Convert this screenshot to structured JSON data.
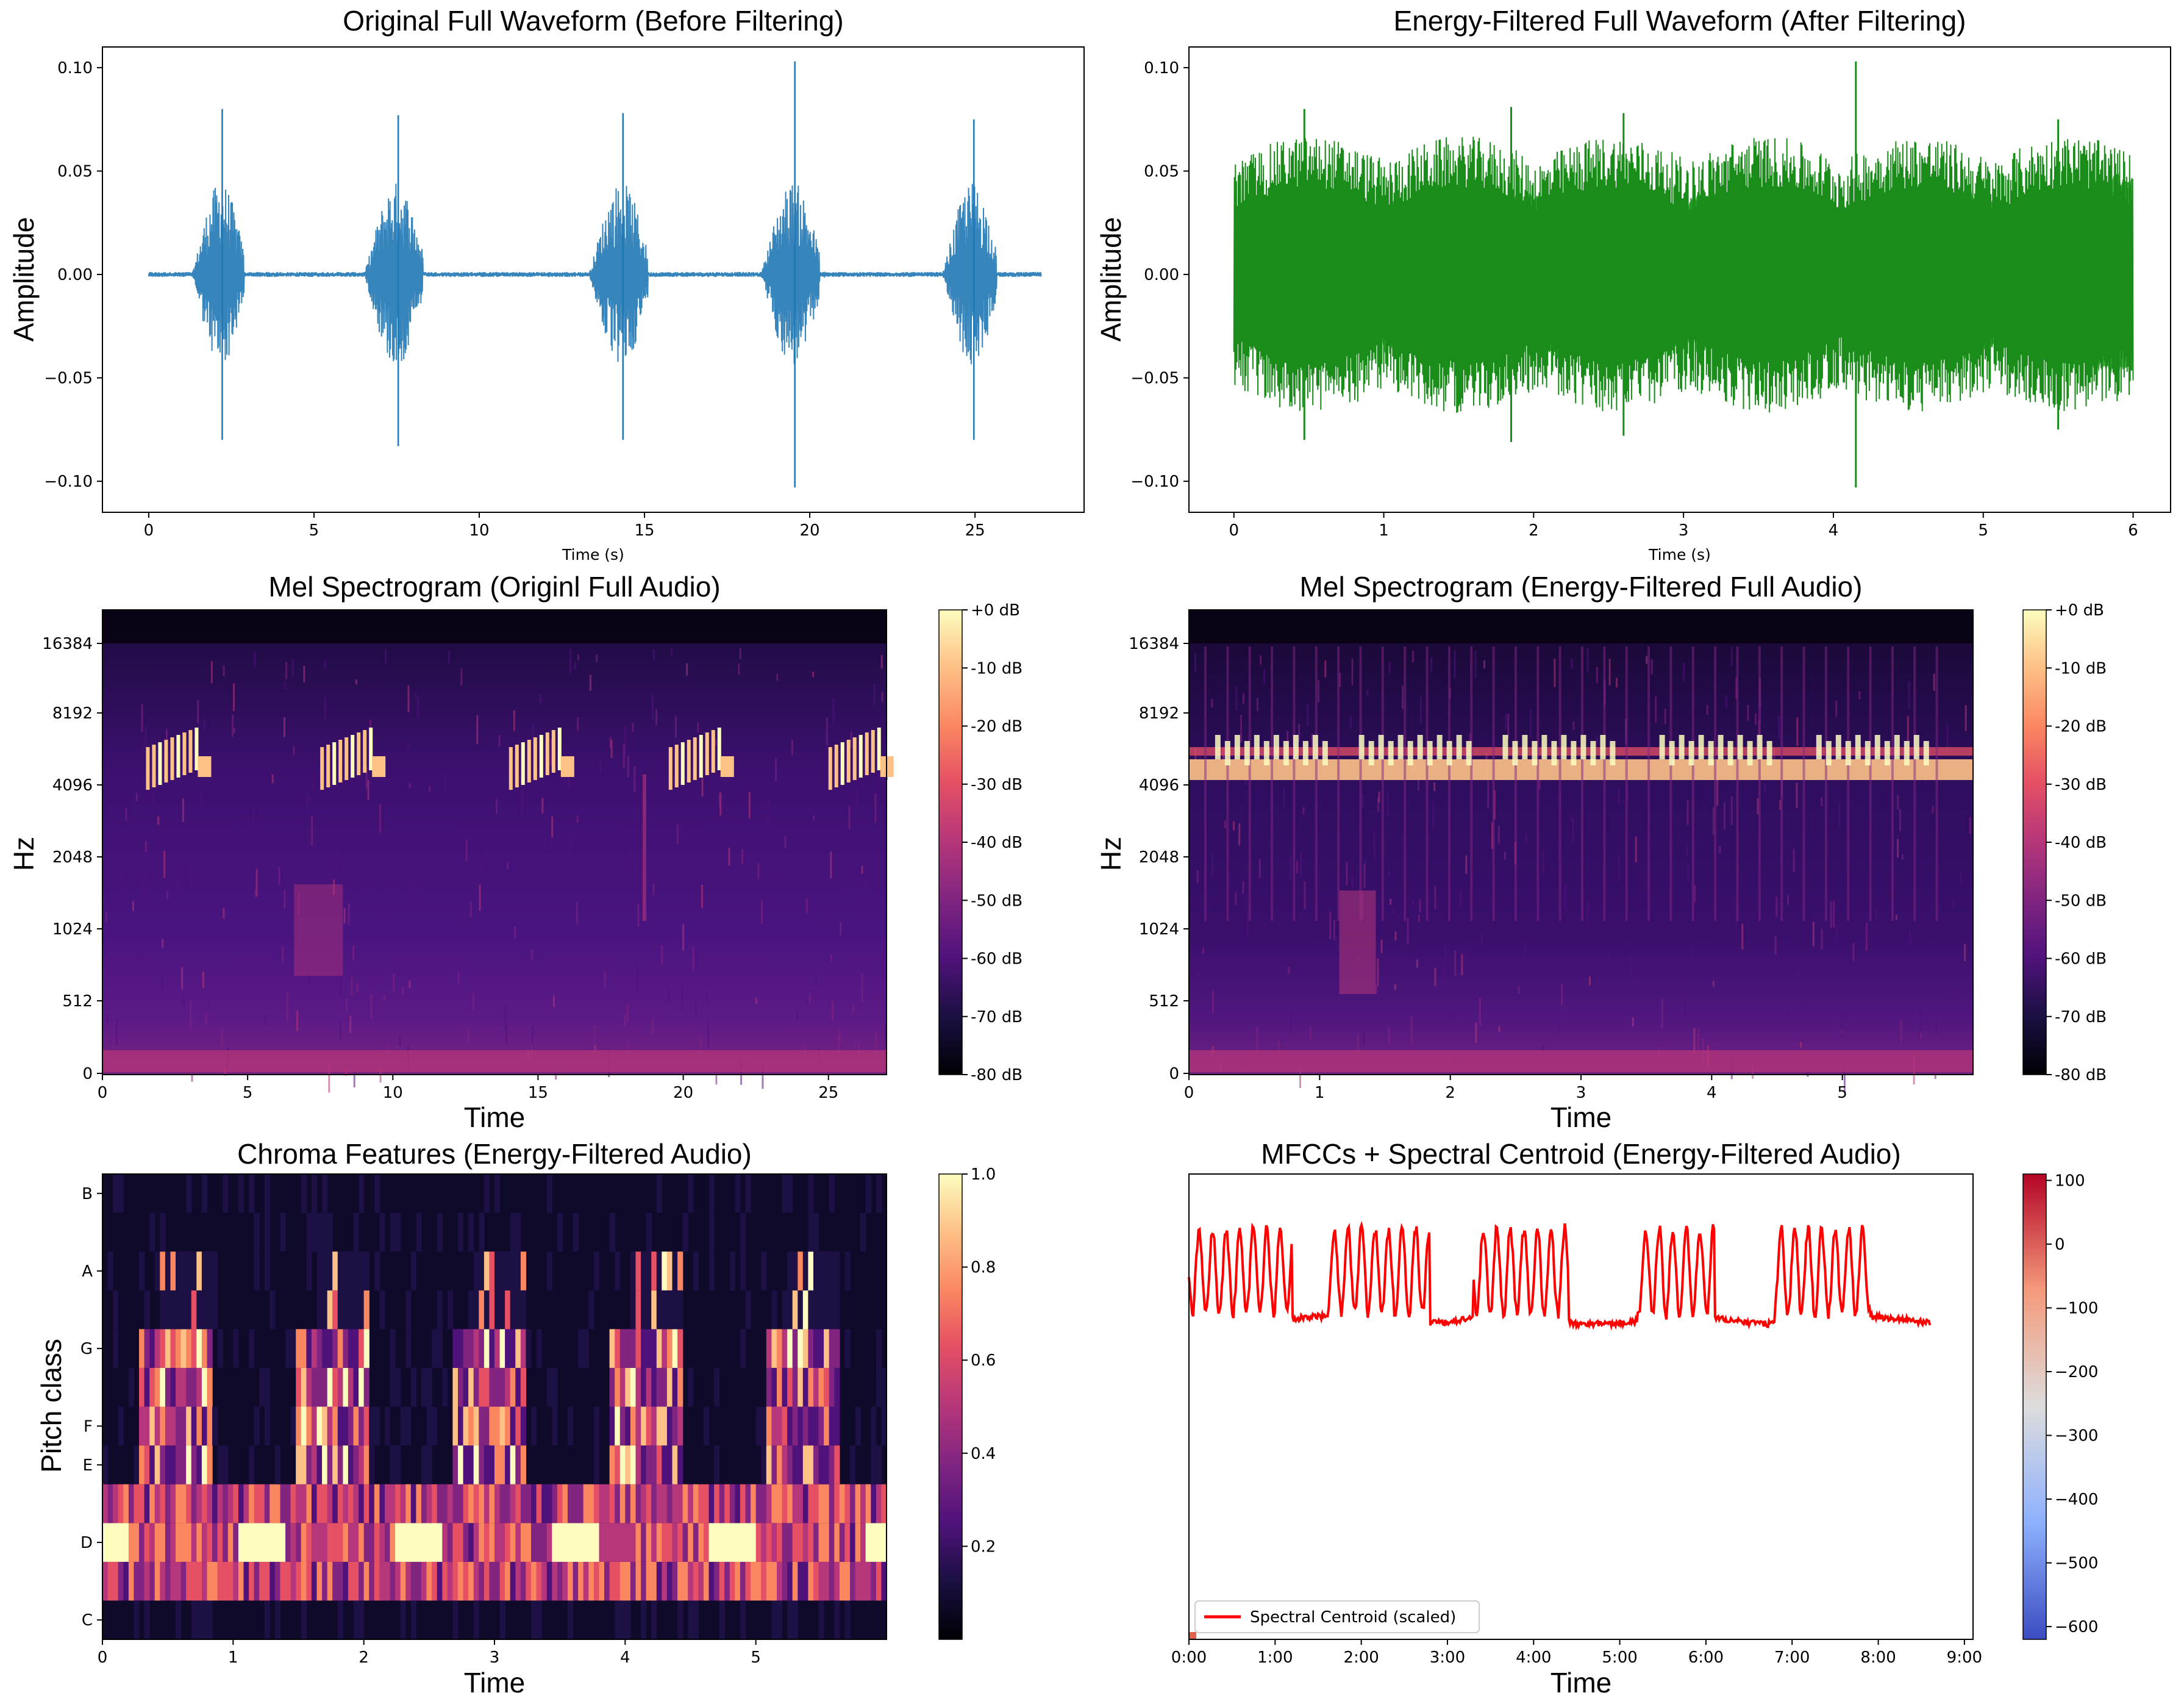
{
  "chart_data": [
    {
      "id": "orig-waveform",
      "type": "line",
      "title": "Original Full Waveform (Before Filtering)",
      "xlabel": "Time (s)",
      "ylabel": "Amplitude",
      "xlim": [
        -1.4,
        28.3
      ],
      "ylim": [
        -0.115,
        0.11
      ],
      "x_ticks": [
        0,
        5,
        10,
        15,
        20,
        25
      ],
      "x_tick_labels": [
        "0",
        "5",
        "10",
        "15",
        "20",
        "25"
      ],
      "y_ticks": [
        -0.1,
        -0.05,
        0.0,
        0.05,
        0.1
      ],
      "y_tick_labels": [
        "−0.10",
        "−0.05",
        "0.00",
        "0.05",
        "0.10"
      ],
      "color": "#1f77b4",
      "duration": 27,
      "bursts": [
        {
          "start": 1.3,
          "end": 3.5,
          "peak_pos": 0.08,
          "peak_neg": -0.08
        },
        {
          "start": 6.5,
          "end": 9.0,
          "peak_pos": 0.077,
          "peak_neg": -0.083
        },
        {
          "start": 13.3,
          "end": 15.8,
          "peak_pos": 0.078,
          "peak_neg": -0.08
        },
        {
          "start": 18.5,
          "end": 21.0,
          "peak_pos": 0.103,
          "peak_neg": -0.103
        },
        {
          "start": 24.0,
          "end": 26.3,
          "peak_pos": 0.075,
          "peak_neg": -0.08
        }
      ]
    },
    {
      "id": "filtered-waveform",
      "type": "line",
      "title": "Energy-Filtered Full Waveform (After Filtering)",
      "xlabel": "Time (s)",
      "ylabel": "Amplitude",
      "xlim": [
        -0.3,
        6.25
      ],
      "ylim": [
        -0.115,
        0.11
      ],
      "x_ticks": [
        0,
        1,
        2,
        3,
        4,
        5,
        6
      ],
      "x_tick_labels": [
        "0",
        "1",
        "2",
        "3",
        "4",
        "5",
        "6"
      ],
      "y_ticks": [
        -0.1,
        -0.05,
        0.0,
        0.05,
        0.1
      ],
      "y_tick_labels": [
        "−0.10",
        "−0.05",
        "0.00",
        "0.05",
        "0.10"
      ],
      "color": "#2ca02c",
      "duration": 6,
      "spikes": [
        {
          "t": 0.47,
          "amp": 0.08
        },
        {
          "t": 1.85,
          "amp": 0.081
        },
        {
          "t": 2.6,
          "amp": 0.078
        },
        {
          "t": 4.15,
          "amp": 0.103
        },
        {
          "t": 5.5,
          "amp": 0.075
        }
      ]
    },
    {
      "id": "mel-original",
      "type": "heatmap",
      "title": "Mel Spectrogram (Originl Full Audio)",
      "xlabel": "Time",
      "ylabel": "Hz",
      "xlim": [
        0,
        27
      ],
      "x_ticks": [
        0,
        5,
        10,
        15,
        20,
        25
      ],
      "x_tick_labels": [
        "0",
        "5",
        "10",
        "15",
        "20",
        "25"
      ],
      "y_tick_labels": [
        "0",
        "512",
        "1024",
        "2048",
        "4096",
        "8192",
        "16384"
      ],
      "colorbar_labels": [
        "+0 dB",
        "-10 dB",
        "-20 dB",
        "-30 dB",
        "-40 dB",
        "-50 dB",
        "-60 dB",
        "-70 dB",
        "-80 dB"
      ],
      "colorbar_range": [
        -80,
        0
      ],
      "call_times": [
        1.5,
        7.5,
        14.0,
        19.5,
        25.0
      ]
    },
    {
      "id": "mel-filtered",
      "type": "heatmap",
      "title": "Mel Spectrogram (Energy-Filtered Full Audio)",
      "xlabel": "Time",
      "ylabel": "Hz",
      "xlim": [
        0,
        6
      ],
      "x_ticks": [
        0,
        1,
        2,
        3,
        4,
        5
      ],
      "x_tick_labels": [
        "0",
        "1",
        "2",
        "3",
        "4",
        "5"
      ],
      "y_tick_labels": [
        "0",
        "512",
        "1024",
        "2048",
        "4096",
        "8192",
        "16384"
      ],
      "colorbar_labels": [
        "+0 dB",
        "-10 dB",
        "-20 dB",
        "-30 dB",
        "-40 dB",
        "-50 dB",
        "-60 dB",
        "-70 dB",
        "-80 dB"
      ],
      "colorbar_range": [
        -80,
        0
      ]
    },
    {
      "id": "chroma",
      "type": "heatmap",
      "title": "Chroma Features (Energy-Filtered Audio)",
      "xlabel": "Time",
      "ylabel": "Pitch class",
      "xlim": [
        0,
        6
      ],
      "x_ticks": [
        0,
        1,
        2,
        3,
        4,
        5
      ],
      "x_tick_labels": [
        "0",
        "1",
        "2",
        "3",
        "4",
        "5"
      ],
      "pitch_labels": [
        "C",
        "D",
        "E",
        "F",
        "G",
        "A",
        "B"
      ],
      "colorbar_labels": [
        "1.0",
        "0.8",
        "0.6",
        "0.4",
        "0.2"
      ],
      "colorbar_range": [
        0,
        1
      ]
    },
    {
      "id": "mfcc-centroid",
      "type": "line",
      "title": "MFCCs + Spectral Centroid (Energy-Filtered Audio)",
      "xlabel": "Time",
      "ylabel": "",
      "xlim": [
        0,
        9.1
      ],
      "x_ticks": [
        0,
        1,
        2,
        3,
        4,
        5,
        6,
        7,
        8,
        9
      ],
      "x_tick_labels": [
        "0:00",
        "1:00",
        "2:00",
        "3:00",
        "4:00",
        "5:00",
        "6:00",
        "7:00",
        "8:00",
        "9:00"
      ],
      "colorbar_labels": [
        "100",
        "0",
        "−100",
        "−200",
        "−300",
        "−400",
        "−500",
        "−600"
      ],
      "colorbar_range": [
        -620,
        110
      ],
      "legend": "Spectral Centroid (scaled)",
      "legend_position": "lower-left",
      "series_color": "#ff0000"
    }
  ]
}
